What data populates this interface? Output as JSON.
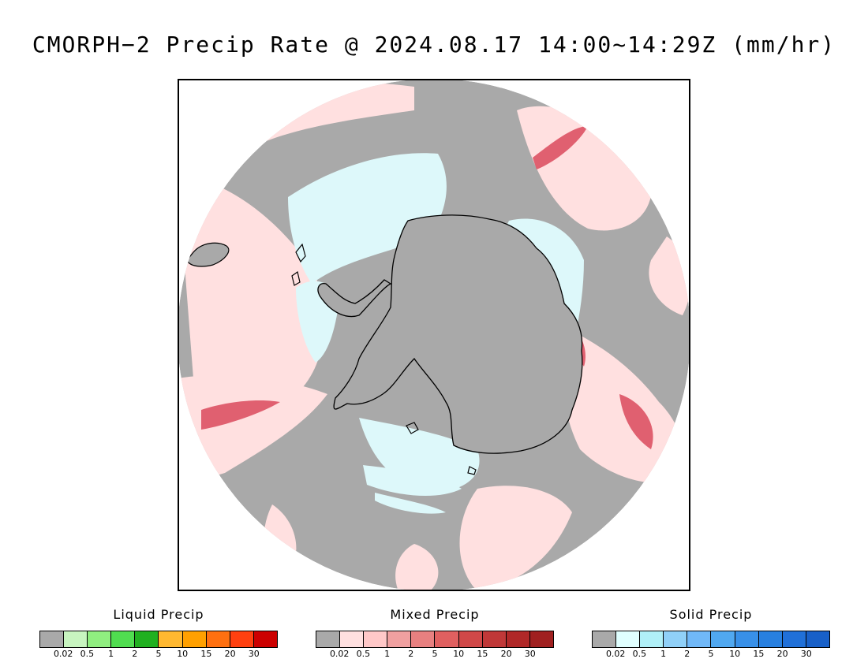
{
  "title": "CMORPH−2 Precip Rate @ 2024.08.17 14:00~14:29Z (mm/hr)",
  "map": {
    "projection": "south-polar-stereographic",
    "colors": {
      "no_precip": "#a9a9a9",
      "mixed_light": "#ffe0e0",
      "mixed_mid": "#f0a0a0",
      "mixed_heavy": "#e06070",
      "solid_light": "#ddf8fa",
      "coastline": "#000000"
    }
  },
  "legends": [
    {
      "title": "Liquid Precip",
      "colors": [
        "#a9a9a9",
        "#c8f5c0",
        "#90ee80",
        "#50dd50",
        "#20b020",
        "#ffb830",
        "#ffa000",
        "#ff7010",
        "#ff4010",
        "#cc0000"
      ],
      "ticks": [
        "0.02",
        "0.5",
        "1",
        "2",
        "5",
        "10",
        "15",
        "20",
        "30"
      ]
    },
    {
      "title": "Mixed Precip",
      "colors": [
        "#a9a9a9",
        "#ffe0e0",
        "#ffc8c8",
        "#f0a0a0",
        "#e88080",
        "#e06060",
        "#d04848",
        "#c03838",
        "#b02828",
        "#a02020"
      ],
      "ticks": [
        "0.02",
        "0.5",
        "1",
        "2",
        "5",
        "10",
        "15",
        "20",
        "30"
      ]
    },
    {
      "title": "Solid Precip",
      "colors": [
        "#a9a9a9",
        "#e0ffff",
        "#b0f0f8",
        "#90d0f8",
        "#70b8f8",
        "#50a8f0",
        "#3890e8",
        "#2880e0",
        "#2070d8",
        "#1860c8"
      ],
      "ticks": [
        "0.02",
        "0.5",
        "1",
        "2",
        "5",
        "10",
        "15",
        "20",
        "30"
      ]
    }
  ]
}
